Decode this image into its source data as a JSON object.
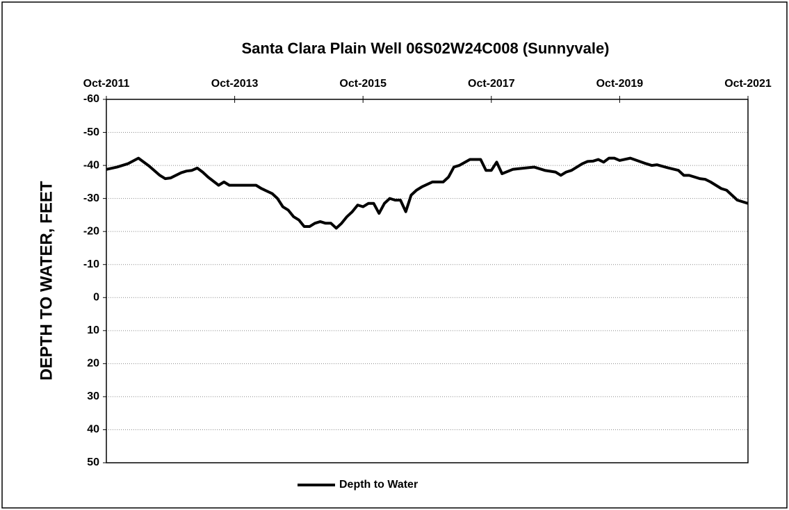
{
  "chart_data": {
    "type": "line",
    "title": "Santa Clara Plain Well 06S02W24C008  (Sunnyvale)",
    "y_label": "DEPTH TO WATER, FEET",
    "x": [
      "2011-10",
      "2011-12",
      "2012-02",
      "2012-04",
      "2012-06",
      "2012-08",
      "2012-09",
      "2012-10",
      "2012-12",
      "2013-01",
      "2013-02",
      "2013-03",
      "2013-04",
      "2013-05",
      "2013-07",
      "2013-08",
      "2013-09",
      "2014-02",
      "2014-03",
      "2014-05",
      "2014-06",
      "2014-07",
      "2014-08",
      "2014-09",
      "2014-10",
      "2014-11",
      "2014-12",
      "2015-01",
      "2015-02",
      "2015-03",
      "2015-04",
      "2015-05",
      "2015-06",
      "2015-07",
      "2015-08",
      "2015-09",
      "2015-10",
      "2015-11",
      "2015-12",
      "2016-01",
      "2016-02",
      "2016-03",
      "2016-04",
      "2016-05",
      "2016-06",
      "2016-07",
      "2016-08",
      "2016-09",
      "2016-11",
      "2017-01",
      "2017-02",
      "2017-03",
      "2017-04",
      "2017-06",
      "2017-08",
      "2017-09",
      "2017-10",
      "2017-11",
      "2017-12",
      "2018-02",
      "2018-03",
      "2018-06",
      "2018-08",
      "2018-10",
      "2018-11",
      "2018-12",
      "2019-01",
      "2019-03",
      "2019-04",
      "2019-05",
      "2019-06",
      "2019-07",
      "2019-08",
      "2019-09",
      "2019-10",
      "2019-12",
      "2020-03",
      "2020-04",
      "2020-05",
      "2020-07",
      "2020-09",
      "2020-10",
      "2020-11",
      "2021-01",
      "2021-02",
      "2021-03",
      "2021-05",
      "2021-06",
      "2021-07",
      "2021-08",
      "2021-10"
    ],
    "series": [
      {
        "name": "Depth to Water",
        "color": "#000000",
        "values": [
          -38.8,
          -39.5,
          -40.5,
          -42.2,
          -39.8,
          -37,
          -36,
          -36.2,
          -37.8,
          -38.3,
          -38.5,
          -39.2,
          -38,
          -36.5,
          -34,
          -35,
          -34,
          -34,
          -33,
          -31.5,
          -30,
          -27.5,
          -26.5,
          -24.5,
          -23.5,
          -21.5,
          -21.5,
          -22.5,
          -23,
          -22.5,
          -22.5,
          -21,
          -22.5,
          -24.5,
          -26,
          -28,
          -27.5,
          -28.5,
          -28.5,
          -25.5,
          -28.5,
          -30,
          -29.5,
          -29.5,
          -26,
          -31,
          -32.5,
          -33.5,
          -35,
          -35,
          -36.5,
          -39.5,
          -40,
          -41.8,
          -41.8,
          -38.5,
          -38.5,
          -41,
          -37.5,
          -38.8,
          -39,
          -39.5,
          -38.5,
          -38,
          -37,
          -38,
          -38.5,
          -40.5,
          -41.2,
          -41.3,
          -41.8,
          -41,
          -42.2,
          -42.2,
          -41.5,
          -42.2,
          -40.5,
          -40,
          -40.2,
          -39.3,
          -38.5,
          -37,
          -37,
          -36,
          -35.8,
          -35,
          -33,
          -32.5,
          -31,
          -29.5,
          -28.5
        ]
      }
    ],
    "xlim": [
      "2011-10",
      "2021-10"
    ],
    "xticks": [
      {
        "value": "2011-10",
        "label": "Oct-2011"
      },
      {
        "value": "2013-10",
        "label": "Oct-2013"
      },
      {
        "value": "2015-10",
        "label": "Oct-2015"
      },
      {
        "value": "2017-10",
        "label": "Oct-2017"
      },
      {
        "value": "2019-10",
        "label": "Oct-2019"
      },
      {
        "value": "2021-10",
        "label": "Oct-2021"
      }
    ],
    "ylim": [
      -60,
      50
    ],
    "y_inverted": true,
    "yticks": [
      -60,
      -50,
      -40,
      -30,
      -20,
      -10,
      0,
      10,
      20,
      30,
      40,
      50
    ],
    "grid": true,
    "legend": "bottom"
  }
}
